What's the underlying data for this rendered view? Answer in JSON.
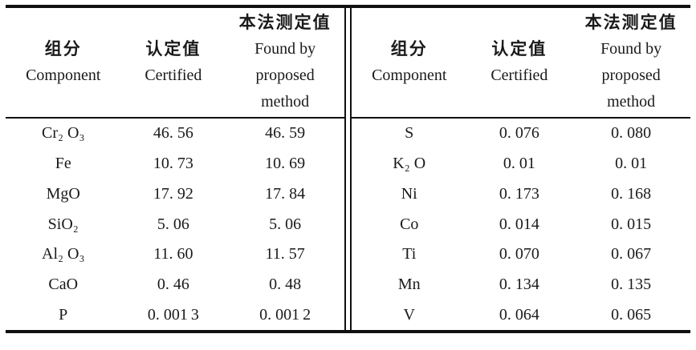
{
  "colors": {
    "background": "#ffffff",
    "text": "#1a1a1a",
    "rule": "#111111"
  },
  "table": {
    "header": {
      "component_zh": "组分",
      "component_en": "Component",
      "certified_zh": "认定值",
      "certified_en": "Certified",
      "found_zh": "本法测定值",
      "found_en_line1": "Found by",
      "found_en_line2": "proposed",
      "found_en_line3": "method"
    },
    "left": {
      "rows": [
        {
          "component": "Cr₂ O₃",
          "certified": "46. 56",
          "found": "46. 59"
        },
        {
          "component": "Fe",
          "certified": "10. 73",
          "found": "10. 69"
        },
        {
          "component": "MgO",
          "certified": "17. 92",
          "found": "17. 84"
        },
        {
          "component": "SiO₂",
          "certified": "5. 06",
          "found": "5. 06"
        },
        {
          "component": "Al₂ O₃",
          "certified": "11. 60",
          "found": "11. 57"
        },
        {
          "component": "CaO",
          "certified": "0. 46",
          "found": "0. 48"
        },
        {
          "component": "P",
          "certified": "0. 001 3",
          "found": "0. 001 2"
        }
      ]
    },
    "right": {
      "rows": [
        {
          "component": "S",
          "certified": "0. 076",
          "found": "0. 080"
        },
        {
          "component": "K₂ O",
          "certified": "0. 01",
          "found": "0. 01"
        },
        {
          "component": "Ni",
          "certified": "0. 173",
          "found": "0. 168"
        },
        {
          "component": "Co",
          "certified": "0. 014",
          "found": "0. 015"
        },
        {
          "component": "Ti",
          "certified": "0. 070",
          "found": "0. 067"
        },
        {
          "component": "Mn",
          "certified": "0. 134",
          "found": "0. 135"
        },
        {
          "component": "V",
          "certified": "0. 064",
          "found": "0. 065"
        }
      ]
    }
  }
}
